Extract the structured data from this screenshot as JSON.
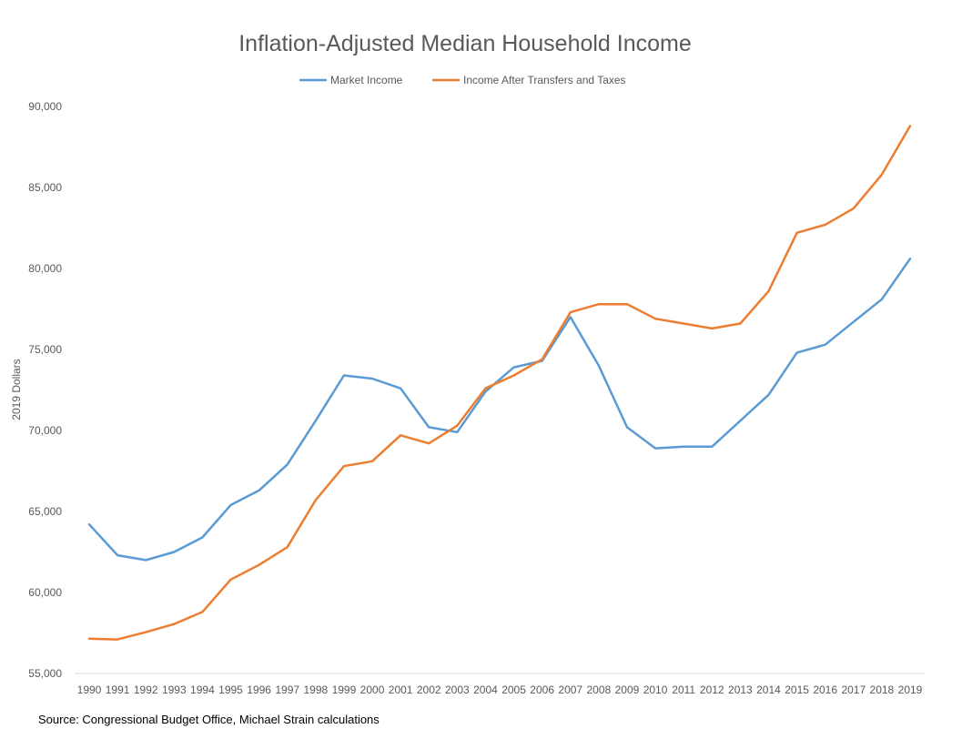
{
  "chart_data": {
    "type": "line",
    "title": "Inflation-Adjusted Median Household Income",
    "xlabel": "",
    "ylabel": "2019 Dollars",
    "ylim": [
      55000,
      90000
    ],
    "yticks": [
      "55,000",
      "60,000",
      "65,000",
      "70,000",
      "75,000",
      "80,000",
      "85,000",
      "90,000"
    ],
    "ytick_values": [
      55000,
      60000,
      65000,
      70000,
      75000,
      80000,
      85000,
      90000
    ],
    "x": [
      "1990",
      "1991",
      "1992",
      "1993",
      "1994",
      "1995",
      "1996",
      "1997",
      "1998",
      "1999",
      "2000",
      "2001",
      "2002",
      "2003",
      "2004",
      "2005",
      "2006",
      "2007",
      "2008",
      "2009",
      "2010",
      "2011",
      "2012",
      "2013",
      "2014",
      "2015",
      "2016",
      "2017",
      "2018",
      "2019"
    ],
    "grid": false,
    "legend_position": "top",
    "series": [
      {
        "name": "Market Income",
        "color": "#5b9bd5",
        "values": [
          64200,
          62300,
          62000,
          62500,
          63400,
          65400,
          66300,
          67900,
          70600,
          73400,
          73200,
          72600,
          70200,
          69900,
          72400,
          73900,
          74300,
          77000,
          74000,
          70200,
          68900,
          69000,
          69000,
          70600,
          72200,
          74800,
          75300,
          76700,
          78100,
          80600
        ]
      },
      {
        "name": "Income After Transfers and Taxes",
        "color": "#ed7d31",
        "values": [
          57150,
          57100,
          57550,
          58050,
          58800,
          60800,
          61700,
          62800,
          65700,
          67800,
          68100,
          69700,
          69200,
          70300,
          72600,
          73400,
          74400,
          77300,
          77800,
          77800,
          76900,
          76600,
          76300,
          76600,
          78600,
          82200,
          82700,
          83700,
          85800,
          88800
        ]
      }
    ],
    "source": "Source: Congressional Budget Office, Michael Strain calculations"
  }
}
